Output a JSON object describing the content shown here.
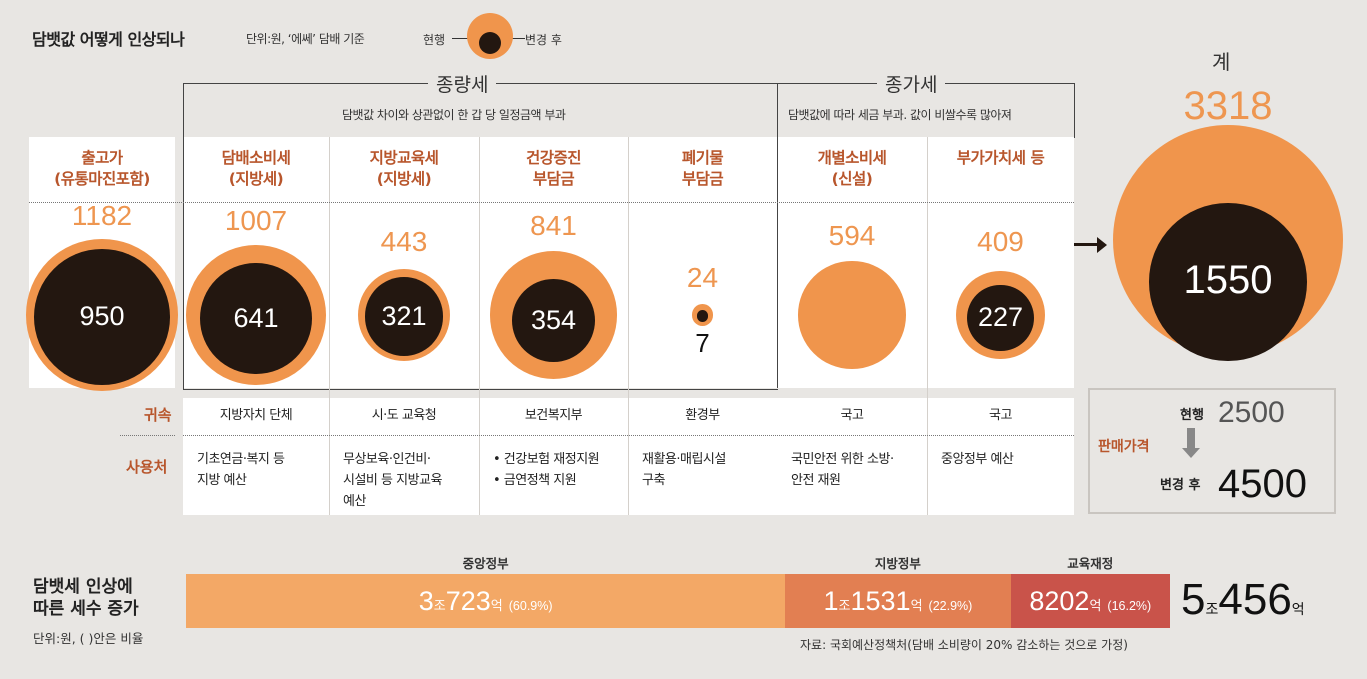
{
  "header": {
    "title": "담뱃값 어떻게 인상되나",
    "unit": "단위:원, ‘에쎄’ 담배 기준",
    "legend_current": "현행",
    "legend_after": "변경 후"
  },
  "groups": {
    "specific": {
      "title": "종량세",
      "note": "담뱃값 차이와 상관없이 한 갑 당 일정금액 부과"
    },
    "ad_valorem": {
      "title": "종가세",
      "note": "담뱃값에 따라 세금 부과. 값이 비쌀수록 많아져"
    }
  },
  "columns": [
    {
      "title1": "출고가",
      "title2": "(유통마진포함)",
      "after": "1182",
      "current": "950",
      "after_value": 1182,
      "current_value": 950
    },
    {
      "title1": "담배소비세",
      "title2": "(지방세)",
      "after": "1007",
      "current": "641",
      "after_value": 1007,
      "current_value": 641,
      "owner": "지방자치 단체",
      "use": [
        "기초연금·복지 등",
        "지방 예산"
      ]
    },
    {
      "title1": "지방교육세",
      "title2": "(지방세)",
      "after": "443",
      "current": "321",
      "after_value": 443,
      "current_value": 321,
      "owner": "시·도 교육청",
      "use": [
        "무상보육·인건비·",
        "시설비 등 지방교육",
        "예산"
      ]
    },
    {
      "title1": "건강증진",
      "title2": "부담금",
      "after": "841",
      "current": "354",
      "after_value": 841,
      "current_value": 354,
      "owner": "보건복지부",
      "use": [
        "• 건강보험 재정지원",
        "• 금연정책 지원"
      ]
    },
    {
      "title1": "폐기물",
      "title2": "부담금",
      "after": "24",
      "current": "7",
      "after_value": 24,
      "current_value": 7,
      "owner": "환경부",
      "use": [
        "재활용·매립시설",
        "구축"
      ]
    },
    {
      "title1": "개별소비세",
      "title2": "(신설)",
      "after": "594",
      "current": "",
      "after_value": 594,
      "current_value": 0,
      "owner": "국고",
      "use": [
        "국민안전 위한 소방·",
        "안전 재원"
      ]
    },
    {
      "title1": "부가가치세 등",
      "title2": "",
      "after": "409",
      "current": "227",
      "after_value": 409,
      "current_value": 227,
      "owner": "국고",
      "use": [
        "중앙정부 예산"
      ]
    }
  ],
  "total": {
    "label": "계",
    "after": "3318",
    "current": "1550",
    "after_value": 3318,
    "current_value": 1550
  },
  "row_labels": {
    "owner": "귀속",
    "use": "사용처"
  },
  "price": {
    "label": "판매가격",
    "current_label": "현행",
    "current_value": "2500",
    "after_label": "변경 후",
    "after_value": "4500"
  },
  "revenue": {
    "label1": "담뱃세 인상에",
    "label2": "따른 세수 증가",
    "unit": "단위:원, ( )안은 비율",
    "segments": [
      {
        "name": "중앙정부",
        "jo": "3",
        "jo_unit": "조",
        "num": "723",
        "eok": "억",
        "pct": "(60.9%)",
        "share": 60.9,
        "color": "#f3a866"
      },
      {
        "name": "지방정부",
        "jo": "1",
        "jo_unit": "조",
        "num": "1531",
        "eok": "억",
        "pct": "(22.9%)",
        "share": 22.9,
        "color": "#e27f52"
      },
      {
        "name": "교육재정",
        "jo": "",
        "jo_unit": "",
        "num": "8202",
        "eok": "억",
        "pct": "(16.2%)",
        "share": 16.2,
        "color": "#c9534a"
      }
    ],
    "total_jo": "5",
    "total_jo_unit": "조",
    "total_num": "456",
    "total_eok": "억",
    "source": "자료: 국회예산정책처(담배 소비량이 20% 감소하는 것으로 가정)"
  },
  "colors": {
    "orange": "#f0954c",
    "dark": "#231710",
    "accent_text": "#b8562c"
  }
}
